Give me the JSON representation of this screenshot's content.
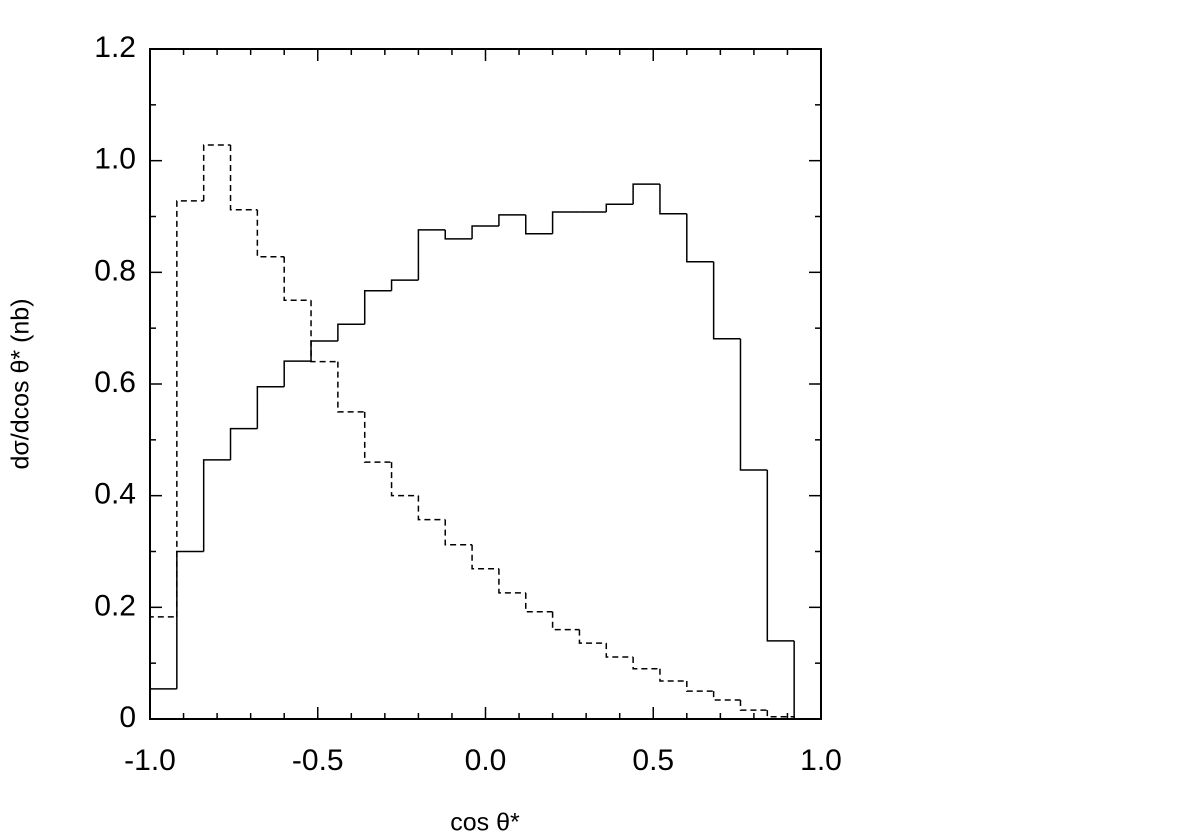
{
  "chart_data": {
    "type": "histogram",
    "xlabel": "cos θ*",
    "ylabel": "dσ/dcos θ* (nb)",
    "bins": [
      -1.0,
      -0.92,
      -0.84,
      -0.76,
      -0.68,
      -0.6,
      -0.52,
      -0.44,
      -0.36,
      -0.28,
      -0.2,
      -0.12,
      -0.04,
      0.04,
      0.12,
      0.2,
      0.28,
      0.36,
      0.44,
      0.52,
      0.6,
      0.68,
      0.76,
      0.84,
      0.92
    ],
    "series": [
      {
        "color": "#000000",
        "style": "solid",
        "values": [
          0.054,
          0.3,
          0.464,
          0.52,
          0.595,
          0.641,
          0.677,
          0.707,
          0.767,
          0.786,
          0.876,
          0.86,
          0.883,
          0.903,
          0.869,
          0.908,
          0.908,
          0.922,
          0.958,
          0.905,
          0.819,
          0.681,
          0.446,
          0.14
        ]
      },
      {
        "color": "#000000",
        "style": "dashed",
        "values": [
          0.183,
          0.928,
          1.028,
          0.912,
          0.828,
          0.75,
          0.64,
          0.55,
          0.46,
          0.4,
          0.357,
          0.312,
          0.269,
          0.226,
          0.192,
          0.16,
          0.136,
          0.111,
          0.09,
          0.068,
          0.05,
          0.034,
          0.016,
          0.004
        ]
      }
    ],
    "xlim": [
      -1.0,
      1.0
    ],
    "xticks": [
      {
        "value": -1.0,
        "label": "-1.0"
      },
      -0.5,
      {
        "value": 0,
        "label": "0.0"
      },
      0.5,
      {
        "value": 1.0,
        "label": "1.0"
      }
    ],
    "ylim": [
      0,
      1.2
    ],
    "yticks": [
      0,
      0.2,
      0.4,
      0.6,
      0.8,
      {
        "value": 1.0,
        "label": "1.0"
      },
      1.2
    ]
  }
}
